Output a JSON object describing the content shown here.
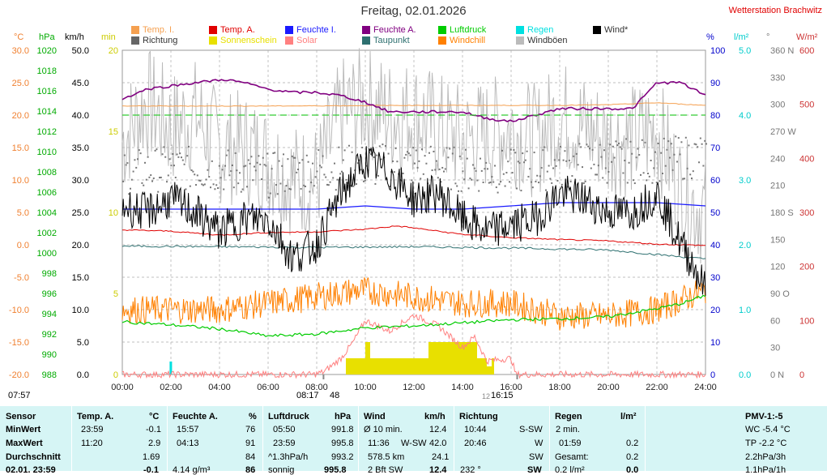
{
  "title": "Freitag, 02.01.2026",
  "station": "Wetterstation Brachwitz",
  "legend": [
    {
      "label": "Temp. I.",
      "color": "#f5a050"
    },
    {
      "label": "Temp. A.",
      "color": "#e00000"
    },
    {
      "label": "Feuchte I.",
      "color": "#1a1aff"
    },
    {
      "label": "Feuchte A.",
      "color": "#800080"
    },
    {
      "label": "Luftdruck",
      "color": "#00cc00"
    },
    {
      "label": "Regen",
      "color": "#00e0e0"
    },
    {
      "label": "Wind*",
      "color": "#000000"
    },
    {
      "label": "Richtung",
      "color": "#666666"
    },
    {
      "label": "Sonnenschein",
      "color": "#e8e000"
    },
    {
      "label": "Solar",
      "color": "#ff8080"
    },
    {
      "label": "Taupunkt",
      "color": "#2e7070"
    },
    {
      "label": "Windchill",
      "color": "#ff8000"
    },
    {
      "label": "Windböen",
      "color": "#bbbbbb"
    }
  ],
  "axis_units": {
    "temp": "°C",
    "pressure": "hPa",
    "wind": "km/h",
    "sun": "min",
    "humidity": "%",
    "rain": "l/m²",
    "direction": "°",
    "solar": "W/m²"
  },
  "axis_colors": {
    "temp": "#f08030",
    "pressure": "#00aa00",
    "wind": "#000000",
    "sun": "#cccc00",
    "humidity": "#0000cc",
    "rain": "#00cccc",
    "direction": "#777777",
    "solar": "#cc3333"
  },
  "chart_data": {
    "type": "line",
    "x_labels": [
      "00:00",
      "02:00",
      "04:00",
      "06:00",
      "08:00",
      "10:00",
      "12:00",
      "14:00",
      "16:00",
      "18:00",
      "20:00",
      "22:00",
      "24:00"
    ],
    "x_range_hours": [
      0,
      24
    ],
    "axes": {
      "temp": {
        "ticks": [
          "30.0",
          "25.0",
          "20.0",
          "15.0",
          "10.0",
          "5.0",
          "0.0",
          "-5.0",
          "-10.0",
          "-15.0",
          "-20.0"
        ],
        "range": [
          -20,
          30
        ]
      },
      "pressure": {
        "ticks": [
          "1020",
          "1018",
          "1016",
          "1014",
          "1012",
          "1010",
          "1008",
          "1006",
          "1004",
          "1002",
          "1000",
          "998",
          "996",
          "994",
          "992",
          "990",
          "988"
        ],
        "range": [
          988,
          1020
        ]
      },
      "wind": {
        "ticks": [
          "50.0",
          "45.0",
          "40.0",
          "35.0",
          "30.0",
          "25.0",
          "20.0",
          "15.0",
          "10.0",
          "5.0",
          "0.0"
        ],
        "range": [
          0,
          50
        ]
      },
      "sun": {
        "ticks": [
          "20",
          "15",
          "10",
          "5",
          "0"
        ],
        "range": [
          0,
          20
        ]
      },
      "humidity": {
        "ticks": [
          "100",
          "90",
          "80",
          "70",
          "60",
          "50",
          "40",
          "30",
          "20",
          "10",
          "0"
        ],
        "range": [
          0,
          100
        ]
      },
      "rain": {
        "ticks": [
          "5.0",
          "4.0",
          "3.0",
          "2.0",
          "1.0",
          "0.0"
        ],
        "range": [
          0,
          5
        ]
      },
      "direction": {
        "ticks": [
          "360 N",
          "330",
          "300",
          "270 W",
          "240",
          "210",
          "180 S",
          "150",
          "120",
          "90 O",
          "60",
          "30",
          "0 N"
        ],
        "range": [
          0,
          360
        ]
      },
      "solar": {
        "ticks": [
          "600",
          "500",
          "400",
          "300",
          "200",
          "100",
          "0"
        ],
        "range": [
          0,
          600
        ]
      }
    },
    "reference_lines": {
      "humidity_80_pct": 80
    },
    "series": [
      {
        "name": "Temp. I.",
        "axis": "temp",
        "t": [
          0,
          6,
          12,
          18,
          20,
          22,
          24
        ],
        "values": [
          21.4,
          21.4,
          21.5,
          21.5,
          21.6,
          21.9,
          21.5
        ]
      },
      {
        "name": "Temp. A.",
        "axis": "temp",
        "t": [
          0,
          2,
          4,
          6,
          8,
          10,
          11.3,
          12,
          14,
          16,
          18,
          20,
          22,
          24
        ],
        "values": [
          2.3,
          2.1,
          1.5,
          1.9,
          2.0,
          2.4,
          2.9,
          2.6,
          1.6,
          1.1,
          0.8,
          0.6,
          0.1,
          -0.1
        ]
      },
      {
        "name": "Feuchte I.",
        "axis": "humidity",
        "t": [
          0,
          4,
          8,
          10,
          12,
          14,
          16,
          18,
          20,
          22,
          24
        ],
        "values": [
          51,
          51,
          51,
          52,
          51,
          51,
          52,
          53,
          53,
          53,
          52
        ]
      },
      {
        "name": "Feuchte A.",
        "axis": "humidity",
        "t": [
          0,
          1,
          2,
          3,
          4.2,
          5,
          6,
          7,
          8,
          9,
          10,
          11,
          12,
          13,
          14,
          15,
          16,
          17,
          18,
          19,
          20,
          21,
          22,
          23,
          24
        ],
        "values": [
          85,
          88,
          89,
          90,
          91,
          90,
          88,
          87,
          87,
          86,
          84,
          81,
          81,
          81,
          81,
          79,
          78,
          80,
          82,
          82,
          82,
          82,
          90,
          90,
          86
        ]
      },
      {
        "name": "Luftdruck",
        "axis": "pressure",
        "t": [
          0,
          2,
          4,
          6,
          8,
          10,
          12,
          14,
          16,
          18,
          20,
          22,
          23,
          24
        ],
        "values": [
          993.2,
          992.9,
          992.5,
          991.8,
          992.0,
          992.6,
          992.8,
          993.1,
          993.4,
          993.5,
          993.7,
          994.5,
          995.0,
          995.8
        ]
      },
      {
        "name": "Taupunkt",
        "axis": "temp",
        "t": [
          0,
          4,
          8,
          12,
          16,
          20,
          24
        ],
        "values": [
          -0.2,
          -0.3,
          -0.4,
          -0.3,
          -0.5,
          -0.8,
          -2.2
        ]
      },
      {
        "name": "Windchill",
        "axis": "temp",
        "t": [
          0,
          4,
          6,
          8,
          9.8,
          12,
          14,
          16,
          18,
          20,
          22,
          24
        ],
        "values": [
          -10,
          -10,
          -9,
          -8,
          -7,
          -8,
          -9,
          -9,
          -11,
          -11,
          -10,
          -7
        ]
      },
      {
        "name": "Wind*",
        "axis": "wind",
        "t": [
          0,
          1,
          2,
          3,
          4,
          5,
          6,
          7,
          8,
          9,
          10,
          11,
          12,
          13,
          14,
          15,
          16,
          17,
          18,
          19,
          20,
          21,
          22,
          23,
          23.5,
          24
        ],
        "values": [
          26,
          25,
          27,
          25,
          22,
          24,
          24,
          18,
          20,
          28,
          33,
          31,
          27,
          28,
          24,
          22,
          23,
          24,
          28,
          27,
          25,
          25,
          28,
          20,
          17,
          13
        ]
      },
      {
        "name": "Windböen",
        "axis": "wind",
        "t": [
          0,
          1,
          2,
          3,
          4,
          5,
          6,
          7,
          8,
          9,
          10,
          11,
          12,
          13,
          14,
          15,
          16,
          17,
          18,
          19,
          20,
          21,
          22,
          23,
          24
        ],
        "values": [
          36,
          42,
          38,
          40,
          35,
          35,
          33,
          30,
          30,
          40,
          42,
          40,
          40,
          38,
          36,
          37,
          38,
          36,
          40,
          38,
          36,
          36,
          38,
          28,
          25
        ]
      },
      {
        "name": "Richtung",
        "axis": "direction",
        "t": [
          0,
          2,
          4,
          6,
          8,
          10,
          12,
          14,
          16,
          18,
          20,
          22,
          24
        ],
        "values": [
          225,
          230,
          228,
          222,
          230,
          232,
          235,
          228,
          226,
          232,
          238,
          238,
          245
        ]
      },
      {
        "name": "Solar",
        "axis": "solar",
        "t": [
          0,
          7.9,
          8.3,
          9,
          9.5,
          10,
          11,
          12,
          13,
          14,
          14.5,
          15,
          16,
          16.2,
          24
        ],
        "values": [
          0,
          0,
          5,
          30,
          60,
          100,
          80,
          110,
          90,
          50,
          70,
          25,
          30,
          0,
          0
        ]
      },
      {
        "name": "Sonnenschein",
        "axis": "sun",
        "t": [
          9.2,
          10,
          10.2,
          11,
          11.3,
          12.3,
          12.6,
          14.1,
          14.6,
          14.8,
          15.0,
          15.2
        ],
        "values": [
          1,
          2,
          1,
          1,
          1,
          1,
          2,
          2,
          1,
          1,
          0.5,
          1
        ]
      },
      {
        "name": "Regen",
        "axis": "rain",
        "t": [
          1.98
        ],
        "values": [
          0.2
        ]
      }
    ],
    "markers": {
      "sunrise": "08:17",
      "sunrise_value": "48",
      "sunset": "16:15",
      "noon": "12",
      "midnight_label": "07:57"
    }
  },
  "stats": {
    "headers": {
      "sensor": "Sensor",
      "temp": "Temp. A.",
      "temp_unit": "°C",
      "hum": "Feuchte A.",
      "hum_unit": "%",
      "press": "Luftdruck",
      "press_unit": "hPa",
      "wind": "Wind",
      "wind_unit": "km/h",
      "dir": "Richtung",
      "rain": "Regen",
      "rain_unit": "l/m²",
      "pmv": "PMV-1:-5"
    },
    "row_labels": [
      "MinWert",
      "MaxWert",
      "Durchschnitt",
      "02.01. 23:59"
    ],
    "temp": [
      [
        "23:59",
        "-0.1"
      ],
      [
        "11:20",
        "2.9"
      ],
      [
        "",
        "1.69"
      ],
      [
        "",
        "-0.1"
      ]
    ],
    "hum": [
      [
        "15:57",
        "76"
      ],
      [
        "04:13",
        "91"
      ],
      [
        "",
        "84"
      ],
      [
        "4.14 g/m³",
        "86"
      ]
    ],
    "press": [
      [
        "05:50",
        "991.8"
      ],
      [
        "23:59",
        "995.8"
      ],
      [
        "^1.3hPa/h",
        "993.2"
      ],
      [
        "sonnig",
        "995.8"
      ]
    ],
    "wind": [
      [
        "Ø 10 min.",
        "",
        "12.4"
      ],
      [
        "11:36",
        "W-SW",
        "42.0"
      ],
      [
        "578.5 km",
        "",
        "24.1"
      ],
      [
        "2 Bft SW",
        "",
        "12.4"
      ]
    ],
    "dir": [
      [
        "10:44",
        "S-SW"
      ],
      [
        "20:46",
        "W"
      ],
      [
        "",
        "SW"
      ],
      [
        "232 °",
        "SW"
      ]
    ],
    "rain": [
      [
        "2 min.",
        ""
      ],
      [
        "01:59",
        "0.2"
      ],
      [
        "Gesamt:",
        "0.2"
      ],
      [
        "0.2 l/m²",
        "0.0"
      ]
    ],
    "pmv": [
      "WC -5.4 °C",
      "TP -2.2 °C",
      "2.2hPa/3h",
      "1.1hPa/1h"
    ]
  }
}
